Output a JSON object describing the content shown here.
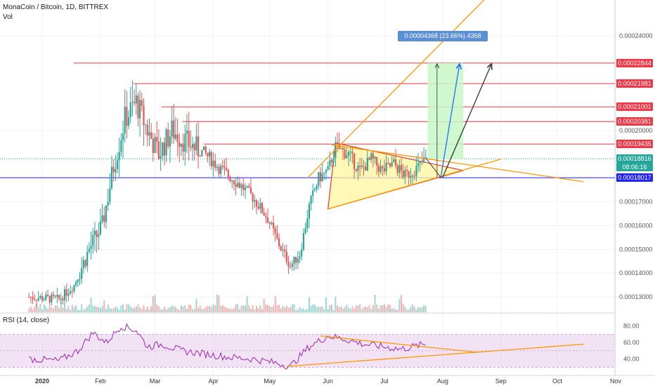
{
  "header": {
    "title": "MonaCoin / Bitcoin, 1D, BITTREX",
    "volume_label": "Vol",
    "rsi_label": "RSI (14, close)"
  },
  "measure_label": "0.00004368 (23.66%) 4368",
  "colors": {
    "bull": "#26a69a",
    "bear": "#ef5350",
    "trend": "#ff9800",
    "resistance": "#f23645",
    "support": "#1e22ff",
    "rsi_line": "#9c27b0",
    "measure_bg": "#5b8fd4",
    "projection_green": "#c8f7c5"
  },
  "price_axis": {
    "ticks": [
      "0.00024000",
      "0.00020000",
      "0.00017000",
      "0.00016000",
      "0.00015000",
      "0.00014000",
      "0.00013000"
    ]
  },
  "price_labels": [
    {
      "text": "0.00022844",
      "kind": "resistance"
    },
    {
      "text": "0.00021981",
      "kind": "resistance"
    },
    {
      "text": "0.00021001",
      "kind": "resistance"
    },
    {
      "text": "0.00020381",
      "kind": "resistance"
    },
    {
      "text": "0.00019435",
      "kind": "resistance"
    },
    {
      "text": "0.00018816",
      "kind": "current"
    },
    {
      "text": "08:06:16",
      "kind": "countdown"
    },
    {
      "text": "0.00018017",
      "kind": "support"
    }
  ],
  "rsi_axis": {
    "ticks": [
      "80.00",
      "60.00",
      "40.00"
    ]
  },
  "time_axis": {
    "labels": [
      "2020",
      "Feb",
      "Mar",
      "Apr",
      "May",
      "Jun",
      "Jul",
      "Aug",
      "Sep",
      "Oct",
      "Nov"
    ]
  },
  "chart_data": {
    "type": "candlestick",
    "title": "MonaCoin / Bitcoin, 1D, BITTREX",
    "ylim": [
      0.0001235,
      0.000255
    ],
    "y_ticks": [
      0.00024,
      0.0002,
      0.00017,
      0.00016,
      0.00015,
      0.00014,
      0.00013
    ],
    "x_labels": [
      "2020",
      "Feb",
      "Mar",
      "Apr",
      "May",
      "Jun",
      "Jul",
      "Aug",
      "Sep",
      "Oct",
      "Nov"
    ],
    "horizontal_levels": [
      0.00022844,
      0.00021981,
      0.00021001,
      0.00020381,
      0.00019435,
      0.00018017
    ],
    "last_price": 0.00018816,
    "projected_move": {
      "value": 4.368e-05,
      "percent": 23.66,
      "ticks": 4368
    },
    "pattern": "symmetrical triangle",
    "price_path": [
      {
        "date": "2019-12-25",
        "price": 0.00013
      },
      {
        "date": "2020-01-10",
        "price": 0.000129
      },
      {
        "date": "2020-01-18",
        "price": 0.000135
      },
      {
        "date": "2020-01-26",
        "price": 0.00015
      },
      {
        "date": "2020-02-02",
        "price": 0.00016
      },
      {
        "date": "2020-02-08",
        "price": 0.000185
      },
      {
        "date": "2020-02-14",
        "price": 0.000205
      },
      {
        "date": "2020-02-20",
        "price": 0.000212
      },
      {
        "date": "2020-02-26",
        "price": 0.0002
      },
      {
        "date": "2020-03-03",
        "price": 0.00019
      },
      {
        "date": "2020-03-10",
        "price": 0.0002
      },
      {
        "date": "2020-03-18",
        "price": 0.000195
      },
      {
        "date": "2020-03-28",
        "price": 0.00019
      },
      {
        "date": "2020-04-06",
        "price": 0.000183
      },
      {
        "date": "2020-04-14",
        "price": 0.000178
      },
      {
        "date": "2020-04-22",
        "price": 0.000172
      },
      {
        "date": "2020-04-30",
        "price": 0.000163
      },
      {
        "date": "2020-05-06",
        "price": 0.000152
      },
      {
        "date": "2020-05-12",
        "price": 0.000143
      },
      {
        "date": "2020-05-17",
        "price": 0.000148
      },
      {
        "date": "2020-05-22",
        "price": 0.000168
      },
      {
        "date": "2020-05-27",
        "price": 0.00018
      },
      {
        "date": "2020-06-01",
        "price": 0.000183
      },
      {
        "date": "2020-06-05",
        "price": 0.000193
      },
      {
        "date": "2020-06-12",
        "price": 0.00019
      },
      {
        "date": "2020-06-18",
        "price": 0.000183
      },
      {
        "date": "2020-06-24",
        "price": 0.000188
      },
      {
        "date": "2020-06-30",
        "price": 0.000183
      },
      {
        "date": "2020-07-06",
        "price": 0.000186
      },
      {
        "date": "2020-07-12",
        "price": 0.000181
      },
      {
        "date": "2020-07-18",
        "price": 0.000184
      },
      {
        "date": "2020-07-23",
        "price": 0.000188
      }
    ],
    "rsi": {
      "ylim": [
        20,
        95
      ],
      "ticks": [
        80,
        60,
        40
      ],
      "band": [
        30,
        70
      ],
      "path": [
        {
          "date": "2019-12-25",
          "value": 40
        },
        {
          "date": "2020-01-10",
          "value": 38
        },
        {
          "date": "2020-01-20",
          "value": 50
        },
        {
          "date": "2020-01-28",
          "value": 72
        },
        {
          "date": "2020-02-04",
          "value": 60
        },
        {
          "date": "2020-02-12",
          "value": 80
        },
        {
          "date": "2020-02-20",
          "value": 75
        },
        {
          "date": "2020-02-26",
          "value": 55
        },
        {
          "date": "2020-03-05",
          "value": 58
        },
        {
          "date": "2020-03-15",
          "value": 50
        },
        {
          "date": "2020-03-28",
          "value": 46
        },
        {
          "date": "2020-04-10",
          "value": 42
        },
        {
          "date": "2020-04-22",
          "value": 40
        },
        {
          "date": "2020-05-05",
          "value": 35
        },
        {
          "date": "2020-05-12",
          "value": 31
        },
        {
          "date": "2020-05-22",
          "value": 55
        },
        {
          "date": "2020-06-01",
          "value": 68
        },
        {
          "date": "2020-06-10",
          "value": 64
        },
        {
          "date": "2020-06-20",
          "value": 58
        },
        {
          "date": "2020-06-30",
          "value": 55
        },
        {
          "date": "2020-07-10",
          "value": 52
        },
        {
          "date": "2020-07-18",
          "value": 56
        },
        {
          "date": "2020-07-23",
          "value": 58
        }
      ]
    }
  }
}
